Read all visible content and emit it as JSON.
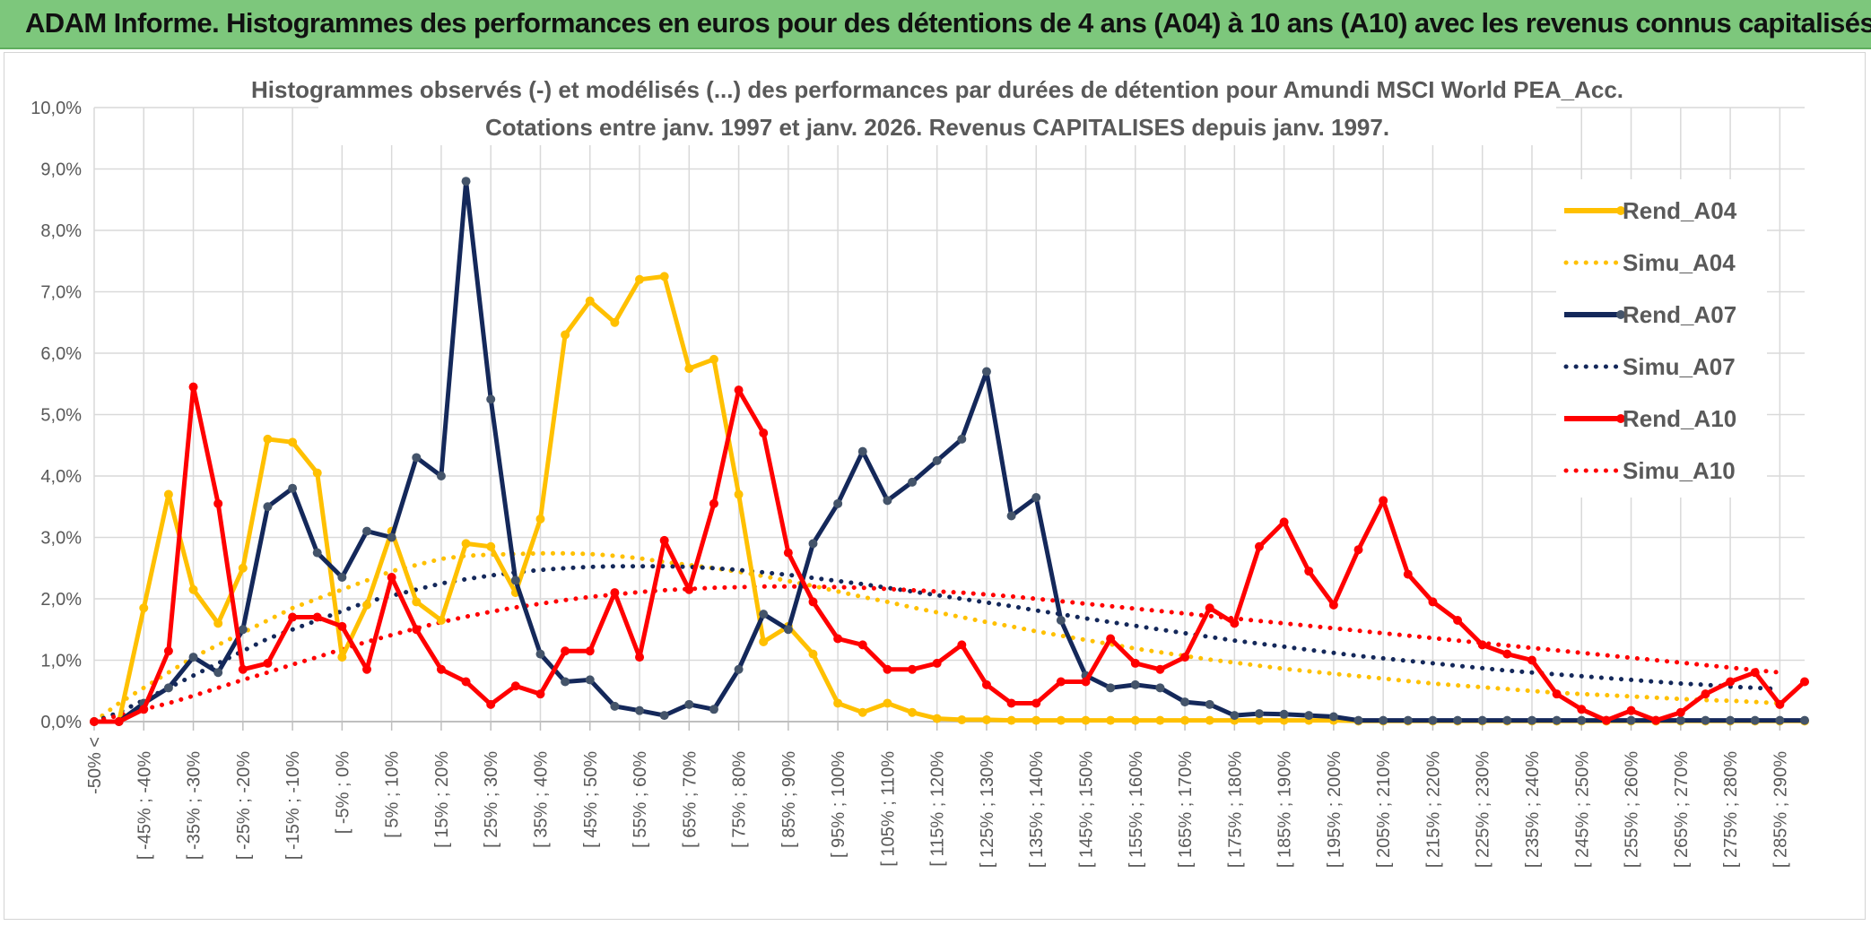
{
  "banner": {
    "title": "ADAM Informe. Histogrammes des performances en euros pour des détentions de 4 ans (A04) à 10 ans (A10) avec les revenus connus capitalisés"
  },
  "colors": {
    "banner_bg": "#7dc77c",
    "A04": "#ffc000",
    "A07": "#14285a",
    "A10": "#ff0000",
    "grid": "#d9d9d9"
  },
  "chart_data": {
    "type": "line",
    "title": "Histogrammes observés (-) et modélisés (...) des performances par durées de détention pour Amundi MSCI World PEA_Acc.",
    "subtitle": "Cotations entre janv. 1997 et janv. 2026. Revenus CAPITALISES depuis janv. 1997.",
    "xlabel": "",
    "ylabel": "",
    "ylim": [
      0,
      10
    ],
    "y_ticks": [
      "0,0%",
      "1,0%",
      "2,0%",
      "3,0%",
      "4,0%",
      "5,0%",
      "6,0%",
      "7,0%",
      "8,0%",
      "9,0%",
      "10,0%"
    ],
    "grid": true,
    "legend_position": "right",
    "x_tick_labels": [
      "-50% <",
      "[ -45% ; -40%",
      "[ -35% ; -30%",
      "[ -25% ; -20%",
      "[ -15% ; -10%",
      "[ -5% ; 0%",
      "[ 5% ; 10%",
      "[ 15% ; 20%",
      "[ 25% ; 30%",
      "[ 35% ; 40%",
      "[ 45% ; 50%",
      "[ 55% ; 60%",
      "[ 65% ; 70%",
      "[ 75% ; 80%",
      "[ 85% ; 90%",
      "[ 95% ; 100%",
      "[ 105% ; 110%",
      "[ 115% ; 120%",
      "[ 125% ; 130%",
      "[ 135% ; 140%",
      "[ 145% ; 150%",
      "[ 155% ; 160%",
      "[ 165% ; 170%",
      "[ 175% ; 180%",
      "[ 185% ; 190%",
      "[ 195% ; 200%",
      "[ 205% ; 210%",
      "[ 215% ; 220%",
      "[ 225% ; 230%",
      "[ 235% ; 240%",
      "[ 245% ; 250%",
      "[ 255% ; 260%",
      "[ 265% ; 270%",
      "[ 275% ; 280%",
      "[ 285% ; 290%"
    ],
    "series": [
      {
        "name": "Rend_A04",
        "style": "solid",
        "color": "#ffc000",
        "values": [
          0,
          0,
          1.85,
          3.7,
          2.15,
          1.6,
          2.5,
          4.6,
          4.55,
          4.05,
          1.05,
          1.9,
          3.1,
          1.95,
          1.65,
          2.9,
          2.85,
          2.1,
          3.3,
          6.3,
          6.85,
          6.5,
          7.2,
          7.25,
          5.75,
          5.9,
          3.7,
          1.3,
          1.55,
          1.1,
          0.3,
          0.15,
          0.3,
          0.15,
          0.05,
          0.03,
          0.03,
          0.02,
          0.02,
          0.02,
          0.02,
          0.02,
          0.02,
          0.02,
          0.02,
          0.02,
          0.02,
          0.02,
          0.02,
          0.02,
          0.02,
          0.01,
          0.01,
          0.01,
          0.01,
          0.01,
          0.01,
          0.01,
          0.01,
          0.01,
          0.01,
          0.01,
          0.01,
          0.01,
          0.01,
          0.01,
          0.01,
          0.01,
          0.01,
          0.01
        ]
      },
      {
        "name": "Simu_A04",
        "style": "dotted",
        "color": "#ffc000",
        "values": [
          0,
          0.3,
          0.55,
          0.8,
          1.05,
          1.25,
          1.45,
          1.65,
          1.85,
          2.0,
          2.15,
          2.3,
          2.45,
          2.55,
          2.65,
          2.7,
          2.72,
          2.73,
          2.74,
          2.74,
          2.73,
          2.7,
          2.66,
          2.6,
          2.55,
          2.5,
          2.44,
          2.37,
          2.29,
          2.21,
          2.12,
          2.03,
          1.95,
          1.86,
          1.78,
          1.7,
          1.62,
          1.55,
          1.47,
          1.4,
          1.33,
          1.26,
          1.19,
          1.13,
          1.07,
          1.01,
          0.96,
          0.91,
          0.86,
          0.82,
          0.78,
          0.74,
          0.7,
          0.66,
          0.62,
          0.59,
          0.56,
          0.53,
          0.5,
          0.47,
          0.45,
          0.43,
          0.41,
          0.39,
          0.37,
          0.35,
          0.34,
          0.32,
          0.3
        ]
      },
      {
        "name": "Rend_A07",
        "style": "solid",
        "color": "#14285a",
        "values": [
          0,
          0,
          0.3,
          0.55,
          1.05,
          0.8,
          1.5,
          3.5,
          3.8,
          2.75,
          2.35,
          3.1,
          3.0,
          4.3,
          4.0,
          8.8,
          5.25,
          2.3,
          1.1,
          0.65,
          0.68,
          0.25,
          0.18,
          0.1,
          0.28,
          0.2,
          0.85,
          1.75,
          1.5,
          2.9,
          3.55,
          4.4,
          3.6,
          3.9,
          4.25,
          4.6,
          5.7,
          3.35,
          3.65,
          1.65,
          0.75,
          0.55,
          0.6,
          0.55,
          0.32,
          0.28,
          0.1,
          0.13,
          0.12,
          0.1,
          0.08,
          0.02,
          0.02,
          0.02,
          0.02,
          0.02,
          0.02,
          0.02,
          0.02,
          0.02,
          0.02,
          0.02,
          0.02,
          0.02,
          0.02,
          0.02,
          0.02,
          0.02,
          0.02,
          0.02
        ]
      },
      {
        "name": "Simu_A07",
        "style": "dotted",
        "color": "#14285a",
        "values": [
          0,
          0.15,
          0.35,
          0.55,
          0.75,
          0.95,
          1.15,
          1.35,
          1.5,
          1.65,
          1.8,
          1.95,
          2.05,
          2.15,
          2.25,
          2.32,
          2.38,
          2.43,
          2.47,
          2.5,
          2.52,
          2.53,
          2.53,
          2.53,
          2.52,
          2.5,
          2.47,
          2.43,
          2.39,
          2.34,
          2.29,
          2.24,
          2.18,
          2.12,
          2.06,
          2.0,
          1.94,
          1.88,
          1.81,
          1.75,
          1.68,
          1.62,
          1.56,
          1.5,
          1.44,
          1.38,
          1.32,
          1.27,
          1.22,
          1.17,
          1.12,
          1.07,
          1.03,
          0.99,
          0.95,
          0.91,
          0.87,
          0.83,
          0.8,
          0.77,
          0.74,
          0.71,
          0.68,
          0.65,
          0.62,
          0.6,
          0.57,
          0.55,
          0.53
        ]
      },
      {
        "name": "Rend_A10",
        "style": "solid",
        "color": "#ff0000",
        "values": [
          0,
          0,
          0.2,
          1.15,
          5.45,
          3.55,
          0.85,
          0.95,
          1.7,
          1.7,
          1.55,
          0.85,
          2.35,
          1.5,
          0.85,
          0.65,
          0.28,
          0.58,
          0.45,
          1.15,
          1.15,
          2.1,
          1.05,
          2.95,
          2.15,
          3.55,
          5.4,
          4.7,
          2.75,
          1.95,
          1.35,
          1.25,
          0.85,
          0.85,
          0.95,
          1.25,
          0.6,
          0.3,
          0.3,
          0.65,
          0.65,
          1.35,
          0.95,
          0.85,
          1.05,
          1.85,
          1.6,
          2.85,
          3.25,
          2.45,
          1.9,
          2.8,
          3.6,
          2.4,
          1.95,
          1.65,
          1.25,
          1.1,
          1.0,
          0.45,
          0.2,
          0.02,
          0.18,
          0.02,
          0.15,
          0.45,
          0.65,
          0.8,
          0.28,
          0.65
        ]
      },
      {
        "name": "Simu_A10",
        "style": "dotted",
        "color": "#ff0000",
        "values": [
          0,
          0.1,
          0.2,
          0.3,
          0.42,
          0.55,
          0.68,
          0.8,
          0.93,
          1.05,
          1.18,
          1.3,
          1.41,
          1.52,
          1.62,
          1.71,
          1.79,
          1.86,
          1.92,
          1.98,
          2.03,
          2.07,
          2.11,
          2.14,
          2.16,
          2.18,
          2.19,
          2.2,
          2.2,
          2.2,
          2.19,
          2.18,
          2.16,
          2.14,
          2.12,
          2.1,
          2.07,
          2.04,
          2.0,
          1.96,
          1.92,
          1.88,
          1.84,
          1.8,
          1.76,
          1.72,
          1.68,
          1.64,
          1.6,
          1.56,
          1.52,
          1.48,
          1.44,
          1.4,
          1.36,
          1.32,
          1.28,
          1.24,
          1.2,
          1.16,
          1.12,
          1.08,
          1.04,
          1.0,
          0.96,
          0.92,
          0.88,
          0.84,
          0.8
        ]
      }
    ]
  }
}
